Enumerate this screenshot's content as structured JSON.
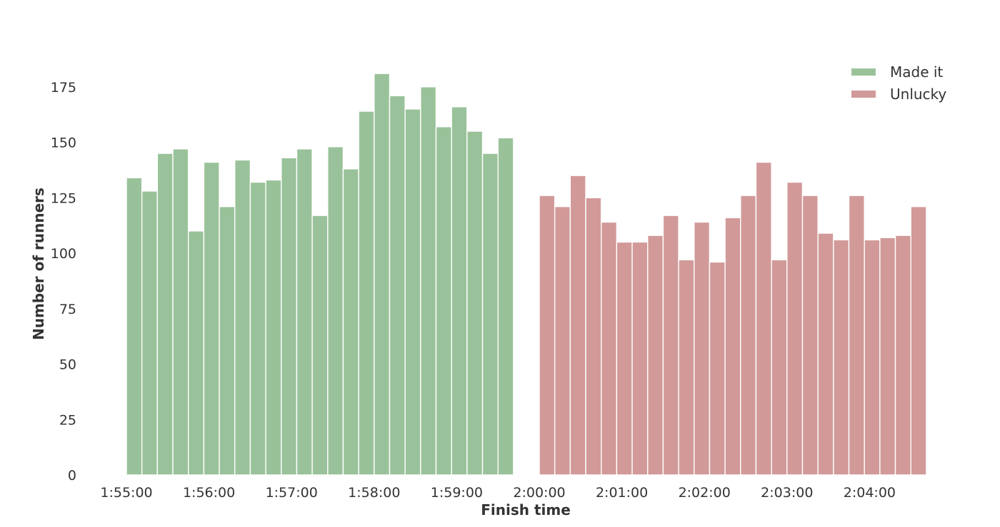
{
  "chart_data": {
    "type": "bar",
    "xlabel": "Finish time",
    "ylabel": "Number of runners",
    "ylim": [
      0,
      185
    ],
    "y_ticks": [
      0,
      25,
      50,
      75,
      100,
      125,
      150,
      175
    ],
    "x_range_seconds": [
      6900,
      7485
    ],
    "x_ticks": [
      "1:55:00",
      "1:56:00",
      "1:57:00",
      "1:58:00",
      "1:59:00",
      "2:00:00",
      "2:01:00",
      "2:02:00",
      "2:03:00",
      "2:04:00"
    ],
    "bin_width_seconds": 11.25,
    "legend_position": "top-right",
    "grid": false,
    "series": [
      {
        "name": "Made it",
        "color": "#9ac29a",
        "start": "1:55:00",
        "values": [
          134,
          128,
          145,
          147,
          110,
          141,
          121,
          142,
          132,
          133,
          143,
          147,
          117,
          148,
          138,
          164,
          181,
          171,
          165,
          175,
          157,
          166,
          155,
          145,
          152
        ]
      },
      {
        "name": "Unlucky",
        "color": "#d29999",
        "start": "2:00:00",
        "values": [
          126,
          121,
          135,
          125,
          114,
          105,
          105,
          108,
          117,
          97,
          114,
          96,
          116,
          126,
          141,
          97,
          132,
          126,
          109,
          106,
          126,
          106,
          107,
          108,
          121
        ]
      }
    ]
  }
}
